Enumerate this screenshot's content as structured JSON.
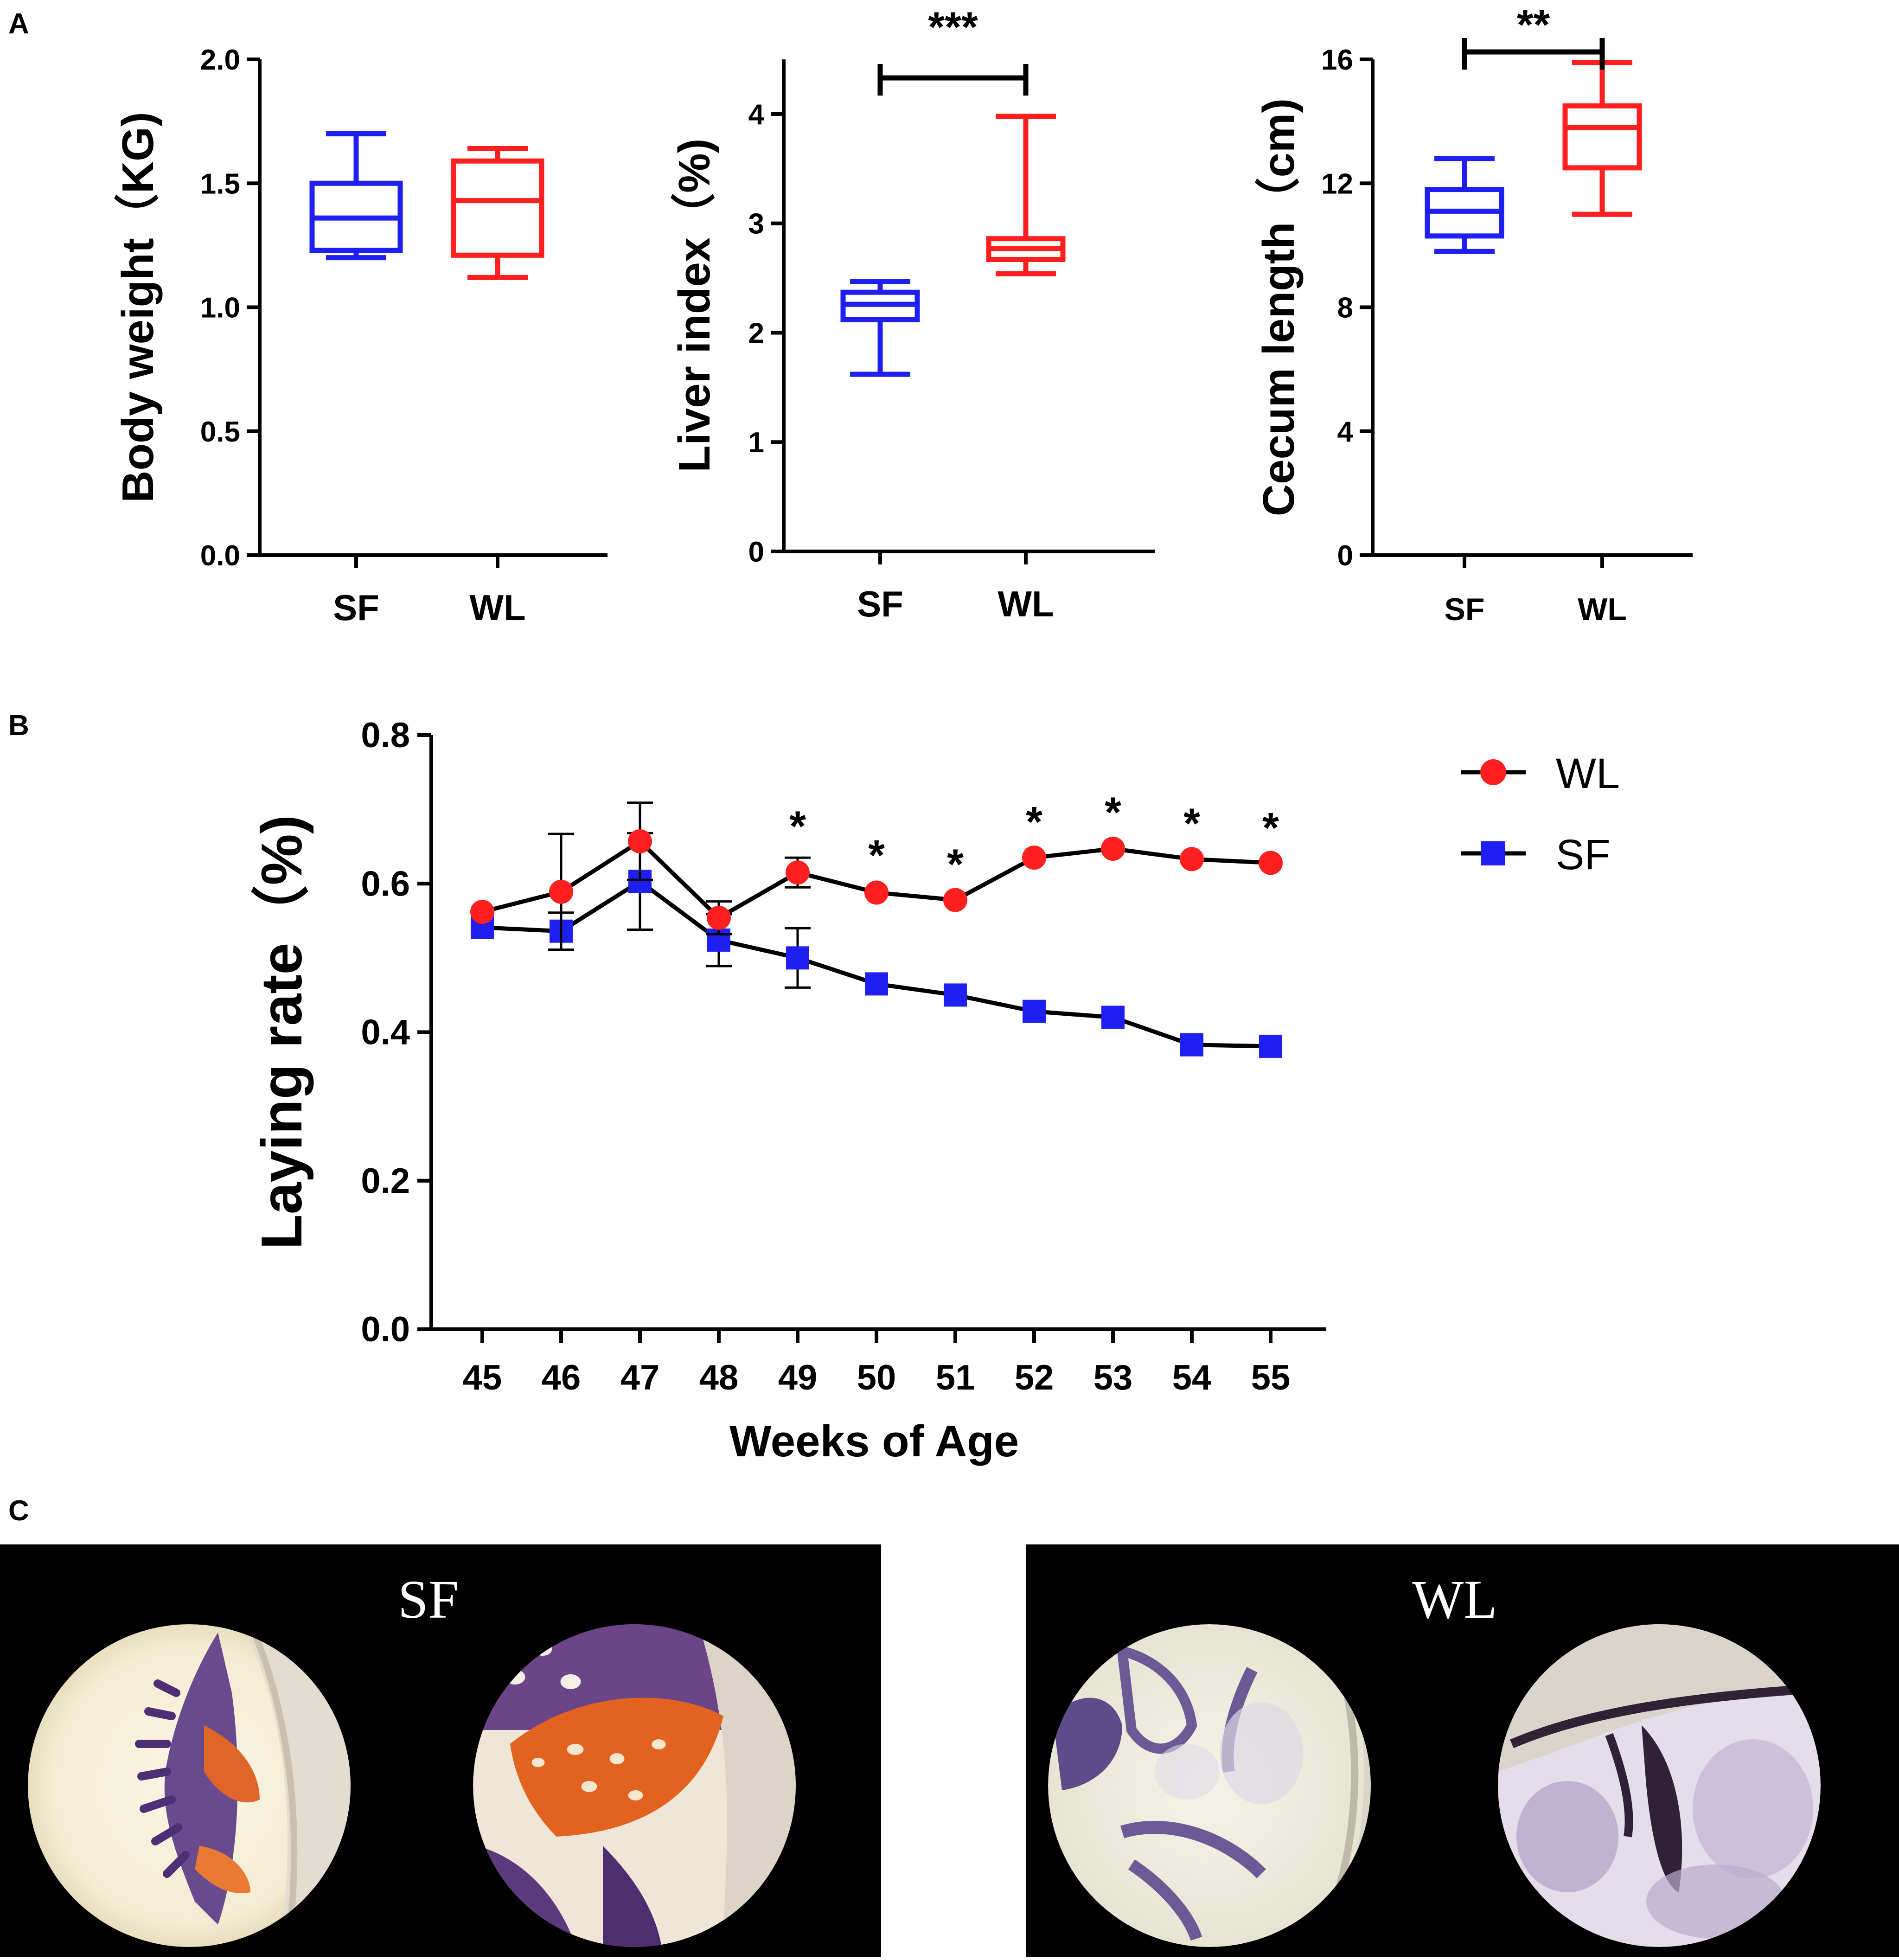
{
  "panels": {
    "a": "A",
    "b": "B",
    "c": "C"
  },
  "chart_data": [
    {
      "type": "box",
      "id": "body-weight",
      "ylabel": "Body weight（KG)",
      "ylim": [
        0,
        2.0
      ],
      "yticks": [
        0.0,
        0.5,
        1.0,
        1.5,
        2.0
      ],
      "ytick_labels": [
        "0.0",
        "0.5",
        "1.0",
        "1.5",
        "2.0"
      ],
      "categories": [
        "SF",
        "WL"
      ],
      "boxes": [
        {
          "group": "SF",
          "min": 1.2,
          "q1": 1.23,
          "median": 1.36,
          "q3": 1.5,
          "max": 1.7
        },
        {
          "group": "WL",
          "min": 1.12,
          "q1": 1.21,
          "median": 1.43,
          "q3": 1.59,
          "max": 1.64
        }
      ],
      "significance": ""
    },
    {
      "type": "box",
      "id": "liver-index",
      "ylabel": "Liver index（%)",
      "ylim": [
        0,
        4.5
      ],
      "yticks": [
        0,
        1,
        2,
        3,
        4
      ],
      "ytick_labels": [
        "0",
        "1",
        "2",
        "3",
        "4"
      ],
      "categories": [
        "SF",
        "WL"
      ],
      "boxes": [
        {
          "group": "SF",
          "min": 1.62,
          "q1": 2.12,
          "median": 2.26,
          "q3": 2.37,
          "max": 2.47
        },
        {
          "group": "WL",
          "min": 2.54,
          "q1": 2.67,
          "median": 2.77,
          "q3": 2.86,
          "max": 3.98
        }
      ],
      "significance": "***"
    },
    {
      "type": "box",
      "id": "cecum-length",
      "ylabel": "Cecum length（cm)",
      "ylim": [
        0,
        16
      ],
      "yticks": [
        0,
        4,
        8,
        12,
        16
      ],
      "ytick_labels": [
        "0",
        "4",
        "8",
        "12",
        "16"
      ],
      "categories": [
        "SF",
        "WL"
      ],
      "boxes": [
        {
          "group": "SF",
          "min": 9.8,
          "q1": 10.3,
          "median": 11.1,
          "q3": 11.8,
          "max": 12.8
        },
        {
          "group": "WL",
          "min": 11.0,
          "q1": 12.5,
          "median": 13.8,
          "q3": 14.5,
          "max": 15.9
        }
      ],
      "significance": "**"
    },
    {
      "type": "line",
      "id": "laying-rate",
      "xlabel": "Weeks of Age",
      "ylabel": "Laying rate（%)",
      "ylim": [
        0,
        0.8
      ],
      "yticks": [
        0.0,
        0.2,
        0.4,
        0.6,
        0.8
      ],
      "ytick_labels": [
        "0.0",
        "0.2",
        "0.4",
        "0.6",
        "0.8"
      ],
      "x": [
        45,
        46,
        47,
        48,
        49,
        50,
        51,
        52,
        53,
        54,
        55
      ],
      "x_labels": [
        "45",
        "46",
        "47",
        "48",
        "49",
        "50",
        "51",
        "52",
        "53",
        "54",
        "55"
      ],
      "series": [
        {
          "name": "WL",
          "color": "#ff1f1f",
          "marker": "circle",
          "values": [
            0.562,
            0.589,
            0.657,
            0.554,
            0.615,
            0.588,
            0.578,
            0.635,
            0.647,
            0.633,
            0.628
          ],
          "errors": [
            0.005,
            0.078,
            0.052,
            0.022,
            0.02,
            0.008,
            0.006,
            0.006,
            0.007,
            0.006,
            0.005
          ]
        },
        {
          "name": "SF",
          "color": "#1f1ff2",
          "marker": "square",
          "values": [
            0.541,
            0.536,
            0.603,
            0.524,
            0.5,
            0.465,
            0.45,
            0.428,
            0.42,
            0.383,
            0.381
          ],
          "errors": [
            0.006,
            0.025,
            0.065,
            0.035,
            0.04,
            0.006,
            0.006,
            0.006,
            0.006,
            0.006,
            0.006
          ]
        }
      ],
      "significance": [
        "",
        "",
        "",
        "",
        "*",
        "*",
        "*",
        "*",
        "*",
        "*",
        "*"
      ],
      "legend": [
        "WL",
        "SF"
      ]
    }
  ],
  "micrographs": {
    "left_label": "SF",
    "right_label": "WL"
  }
}
